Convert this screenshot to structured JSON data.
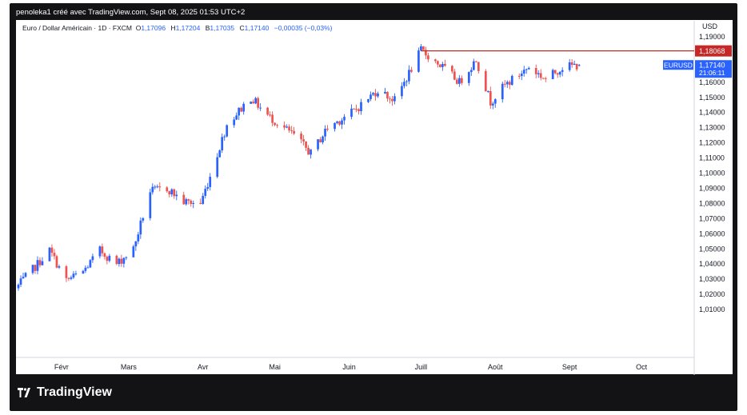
{
  "credit": "penoleka1 créé avec TradingView.com, Sept 08, 2025 01:53 UTC+2",
  "legend": {
    "symbol": "Euro / Dollar Américain · 1D · FXCM",
    "o_label": "O",
    "o": "1,17096",
    "h_label": "H",
    "h": "1,17204",
    "b_label": "B",
    "b": "1,17035",
    "c_label": "C",
    "c": "1,17140",
    "change": "−0,00035 (−0,03%)"
  },
  "brand": "TradingView",
  "colors": {
    "up": "#2962ff",
    "down": "#ef5350",
    "level": "#c62828"
  },
  "chart_data": {
    "type": "candlestick",
    "currency": "USD",
    "ylim": [
      1.0,
      1.2
    ],
    "yticks": [
      1.01,
      1.02,
      1.03,
      1.04,
      1.05,
      1.06,
      1.07,
      1.08,
      1.09,
      1.1,
      1.11,
      1.12,
      1.13,
      1.14,
      1.15,
      1.16,
      1.17,
      1.18,
      1.19
    ],
    "ytick_labels": [
      "1,01000",
      "1,02000",
      "1,03000",
      "1,04000",
      "1,05000",
      "1,06000",
      "1,07000",
      "1,08000",
      "1,09000",
      "1,10000",
      "1,11000",
      "1,12000",
      "1,13000",
      "1,14000",
      "1,15000",
      "1,16000",
      "1,17000",
      "1,18000",
      "1,19000"
    ],
    "xticks": [
      {
        "label": "Févr",
        "date": "2025-02-01"
      },
      {
        "label": "Mars",
        "date": "2025-03-01"
      },
      {
        "label": "Avr",
        "date": "2025-04-01"
      },
      {
        "label": "Mai",
        "date": "2025-05-01"
      },
      {
        "label": "Juin",
        "date": "2025-06-01"
      },
      {
        "label": "Juill",
        "date": "2025-07-01"
      },
      {
        "label": "Août",
        "date": "2025-08-01"
      },
      {
        "label": "Sept",
        "date": "2025-09-01"
      },
      {
        "label": "Oct",
        "date": "2025-10-01"
      }
    ],
    "x_range": [
      "2025-01-13",
      "2025-10-23"
    ],
    "level": {
      "value": 1.18068,
      "label": "1,18068"
    },
    "last_price": {
      "symbol": "EURUSD",
      "value": 1.1714,
      "label": "1,17140",
      "countdown": "21:06:11"
    },
    "close_path": [
      [
        "2025-01-13",
        1.024
      ],
      [
        "2025-01-27",
        1.049
      ],
      [
        "2025-02-03",
        1.029
      ],
      [
        "2025-02-10",
        1.035
      ],
      [
        "2025-02-17",
        1.049
      ],
      [
        "2025-02-24",
        1.04
      ],
      [
        "2025-03-03",
        1.05
      ],
      [
        "2025-03-10",
        1.088
      ],
      [
        "2025-03-17",
        1.09
      ],
      [
        "2025-03-24",
        1.081
      ],
      [
        "2025-03-31",
        1.08
      ],
      [
        "2025-04-04",
        1.098
      ],
      [
        "2025-04-11",
        1.132
      ],
      [
        "2025-04-21",
        1.15
      ],
      [
        "2025-04-28",
        1.138
      ],
      [
        "2025-05-09",
        1.125
      ],
      [
        "2025-05-16",
        1.113
      ],
      [
        "2025-05-23",
        1.13
      ],
      [
        "2025-06-03",
        1.141
      ],
      [
        "2025-06-13",
        1.155
      ],
      [
        "2025-06-20",
        1.148
      ],
      [
        "2025-07-01",
        1.181
      ],
      [
        "2025-07-10",
        1.17
      ],
      [
        "2025-07-17",
        1.16
      ],
      [
        "2025-07-24",
        1.175
      ],
      [
        "2025-07-30",
        1.147
      ],
      [
        "2025-08-05",
        1.158
      ],
      [
        "2025-08-15",
        1.17
      ],
      [
        "2025-08-22",
        1.162
      ],
      [
        "2025-08-29",
        1.17
      ],
      [
        "2025-09-05",
        1.1714
      ]
    ]
  }
}
